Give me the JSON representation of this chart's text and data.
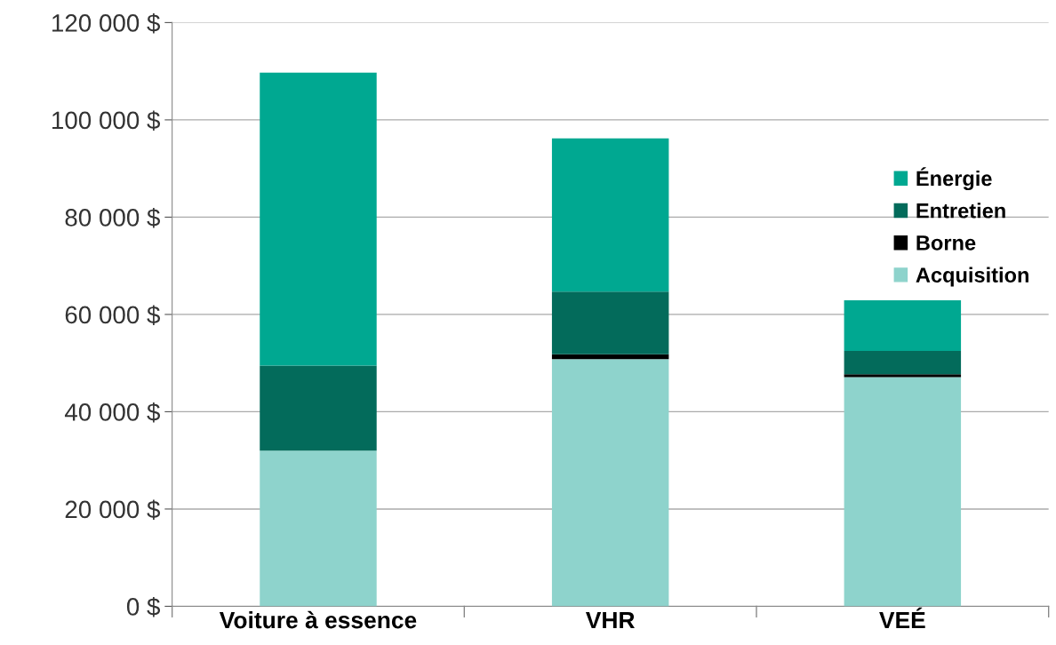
{
  "chart_data": {
    "type": "bar",
    "stacked": true,
    "categories": [
      "Voiture à essence",
      "VHR",
      "VEÉ"
    ],
    "series": [
      {
        "name": "Acquisition",
        "color": "#8ed3cc",
        "values": [
          32000,
          50800,
          47100
        ]
      },
      {
        "name": "Borne",
        "color": "#000000",
        "values": [
          0,
          1000,
          600
        ]
      },
      {
        "name": "Entretien",
        "color": "#036b5b",
        "values": [
          17500,
          12900,
          4800
        ]
      },
      {
        "name": "Énergie",
        "color": "#00a891",
        "values": [
          60200,
          31500,
          10400
        ]
      }
    ],
    "ylim": [
      0,
      120000
    ],
    "yticks": [
      {
        "value": 0,
        "label": "0 $"
      },
      {
        "value": 20000,
        "label": "20 000 $"
      },
      {
        "value": 40000,
        "label": "40 000 $"
      },
      {
        "value": 60000,
        "label": "60 000 $"
      },
      {
        "value": 80000,
        "label": "80 000 $"
      },
      {
        "value": 100000,
        "label": "100 000 $"
      },
      {
        "value": 120000,
        "label": "120 000 $"
      }
    ],
    "grid": "y",
    "legend": "right"
  }
}
